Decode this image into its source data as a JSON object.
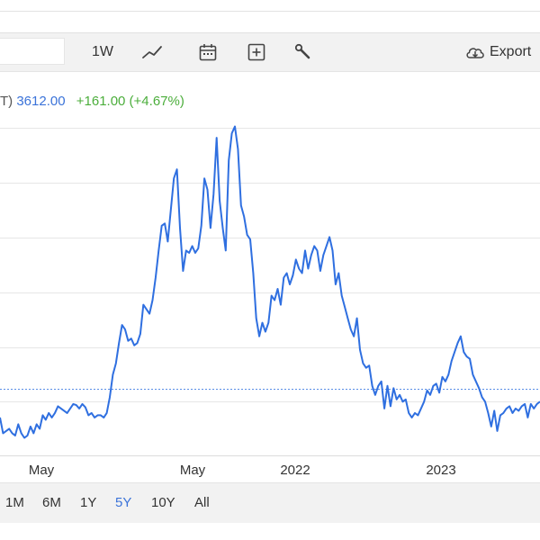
{
  "toolbar": {
    "interval_label": "1W",
    "export_label": "Export",
    "icons": [
      "line-chart-icon",
      "calendar-icon",
      "plus-box-icon",
      "wrench-icon",
      "cloud-download-icon"
    ]
  },
  "quote": {
    "prefix": "T)",
    "last": "3612.00",
    "change": "+161.00 (+4.67%)"
  },
  "ranges": {
    "items": [
      "1M",
      "6M",
      "1Y",
      "5Y",
      "10Y",
      "All"
    ],
    "active": "5Y"
  },
  "colors": {
    "line": "#2f6fe0",
    "reference": "#5a8ee6",
    "grid": "#e6e6e6",
    "up": "#4cae3c",
    "accent": "#3b73d9"
  },
  "chart_data": {
    "type": "line",
    "x_tick_labels": [
      "May",
      "May",
      "2022",
      "2023"
    ],
    "reference_line": "previous close",
    "series": [
      {
        "values": [
          3460,
          3390,
          3400,
          3410,
          3390,
          3380,
          3430,
          3390,
          3370,
          3380,
          3420,
          3390,
          3430,
          3410,
          3470,
          3450,
          3480,
          3460,
          3480,
          3510,
          3500,
          3490,
          3480,
          3500,
          3520,
          3515,
          3500,
          3520,
          3505,
          3470,
          3480,
          3460,
          3470,
          3470,
          3460,
          3480,
          3550,
          3650,
          3700,
          3790,
          3870,
          3850,
          3800,
          3810,
          3780,
          3790,
          3830,
          3960,
          3940,
          3920,
          3980,
          4080,
          4200,
          4310,
          4320,
          4240,
          4380,
          4520,
          4560,
          4300,
          4110,
          4200,
          4190,
          4220,
          4190,
          4210,
          4310,
          4520,
          4470,
          4300,
          4450,
          4700,
          4420,
          4300,
          4200,
          4600,
          4720,
          4750,
          4650,
          4400,
          4350,
          4270,
          4250,
          4100,
          3900,
          3820,
          3880,
          3840,
          3880,
          4000,
          3980,
          4030,
          3960,
          4080,
          4100,
          4050,
          4090,
          4160,
          4120,
          4100,
          4200,
          4120,
          4180,
          4220,
          4200,
          4110,
          4180,
          4220,
          4260,
          4200,
          4050,
          4100,
          4000,
          3950,
          3900,
          3850,
          3820,
          3900,
          3760,
          3700,
          3680,
          3690,
          3600,
          3560,
          3600,
          3620,
          3500,
          3600,
          3510,
          3590,
          3540,
          3560,
          3530,
          3540,
          3480,
          3460,
          3480,
          3470,
          3500,
          3530,
          3580,
          3560,
          3600,
          3610,
          3570,
          3640,
          3620,
          3650,
          3710,
          3750,
          3790,
          3820,
          3750,
          3730,
          3720,
          3650,
          3620,
          3590,
          3550,
          3530,
          3480,
          3420,
          3490,
          3400,
          3470,
          3480,
          3500,
          3510,
          3480,
          3500,
          3490,
          3510,
          3520,
          3460,
          3520,
          3500,
          3520,
          3530
        ]
      }
    ]
  }
}
